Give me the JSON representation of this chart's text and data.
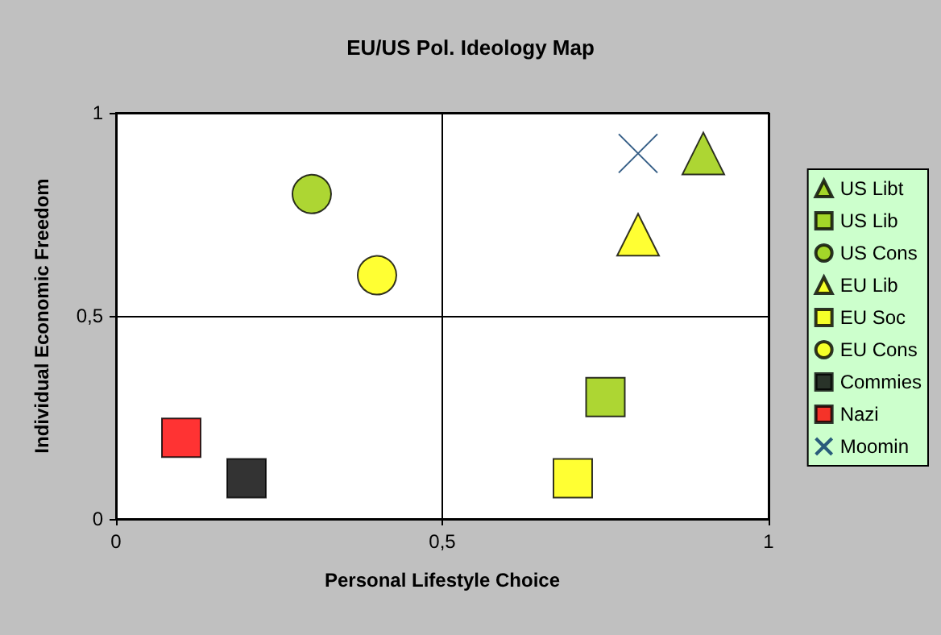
{
  "chart_data": {
    "type": "scatter",
    "title": "EU/US Pol. Ideology Map",
    "xlabel": "Personal Lifestyle Choice",
    "ylabel": "Individual Economic Freedom",
    "xlim": [
      0,
      1
    ],
    "ylim": [
      0,
      1
    ],
    "xticks": [
      0,
      {
        "value": 0.5,
        "label": "0,5"
      },
      1
    ],
    "yticks": [
      0,
      {
        "value": 0.5,
        "label": "0,5"
      },
      1
    ],
    "grid": true,
    "legend": "right",
    "series": [
      {
        "name": "US Libt",
        "color": "#99cc00",
        "marker": "triangle",
        "x": [
          0.9
        ],
        "values": [
          0.9
        ]
      },
      {
        "name": "US Lib",
        "color": "#99cc00",
        "marker": "square",
        "x": [
          0.75
        ],
        "values": [
          0.3
        ]
      },
      {
        "name": "US Cons",
        "color": "#99cc00",
        "marker": "circle",
        "x": [
          0.3
        ],
        "values": [
          0.8
        ]
      },
      {
        "name": "EU Lib",
        "color": "#ffff00",
        "marker": "triangle",
        "x": [
          0.8
        ],
        "values": [
          0.7
        ]
      },
      {
        "name": "EU Soc",
        "color": "#ffff00",
        "marker": "square",
        "x": [
          0.7
        ],
        "values": [
          0.1
        ]
      },
      {
        "name": "EU Cons",
        "color": "#ffff00",
        "marker": "circle",
        "x": [
          0.4
        ],
        "values": [
          0.6
        ]
      },
      {
        "name": "Commies",
        "color": "#000000",
        "marker": "square",
        "x": [
          0.2
        ],
        "values": [
          0.1
        ]
      },
      {
        "name": "Nazi",
        "color": "#ff0000",
        "marker": "square",
        "x": [
          0.1
        ],
        "values": [
          0.2
        ]
      },
      {
        "name": "Moomin",
        "color": "#003366",
        "marker": "cross",
        "x": [
          0.8
        ],
        "values": [
          0.9
        ]
      }
    ]
  }
}
